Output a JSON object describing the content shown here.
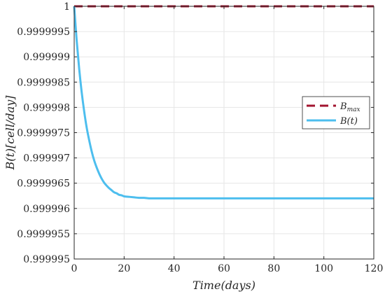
{
  "chart_data": {
    "type": "line",
    "title": "",
    "xlabel": "Time(days)",
    "ylabel": "B(t)[cell/day]",
    "xlim": [
      0,
      120
    ],
    "ylim": [
      0.999995,
      1.0
    ],
    "x_ticks": [
      0,
      20,
      40,
      60,
      80,
      100,
      120
    ],
    "x_tick_labels": [
      "0",
      "20",
      "40",
      "60",
      "80",
      "100",
      "120"
    ],
    "y_ticks": [
      0.999995,
      0.9999955,
      0.999996,
      0.9999965,
      0.999997,
      0.9999975,
      0.999998,
      0.9999985,
      0.999999,
      0.9999995,
      1.0
    ],
    "y_tick_labels": [
      "0.999995",
      "0.9999955",
      "0.999996",
      "0.9999965",
      "0.999997",
      "0.9999975",
      "0.999998",
      "0.9999985",
      "0.999999",
      "0.9999995",
      "1"
    ],
    "grid": true,
    "legend_position": "right",
    "series": [
      {
        "name": "B_max",
        "legend_main": "B",
        "legend_sub": "max",
        "color": "#a2142f",
        "style": "dashed",
        "x": [
          0,
          120
        ],
        "y": [
          1.0,
          1.0
        ]
      },
      {
        "name": "B(t)",
        "legend_main": "B(t)",
        "legend_sub": "",
        "color": "#4dbeee",
        "style": "solid",
        "x": [
          0,
          1,
          2,
          3,
          4,
          5,
          6,
          7,
          8,
          9,
          10,
          11,
          12,
          13,
          14,
          15,
          16,
          17,
          18,
          19,
          20,
          22,
          24,
          26,
          28,
          30,
          35,
          40,
          50,
          60,
          70,
          80,
          90,
          100,
          110,
          120
        ],
        "y": [
          1.0,
          0.99999932,
          0.99999876,
          0.9999983,
          0.99999792,
          0.9999976,
          0.99999735,
          0.99999713,
          0.99999695,
          0.99999681,
          0.99999669,
          0.99999659,
          0.99999651,
          0.99999645,
          0.9999964,
          0.99999636,
          0.99999632,
          0.9999963,
          0.99999627,
          0.99999626,
          0.99999624,
          0.99999623,
          0.99999622,
          0.99999621,
          0.99999621,
          0.9999962,
          0.9999962,
          0.9999962,
          0.9999962,
          0.9999962,
          0.9999962,
          0.9999962,
          0.9999962,
          0.9999962,
          0.9999962,
          0.9999962
        ]
      }
    ]
  }
}
